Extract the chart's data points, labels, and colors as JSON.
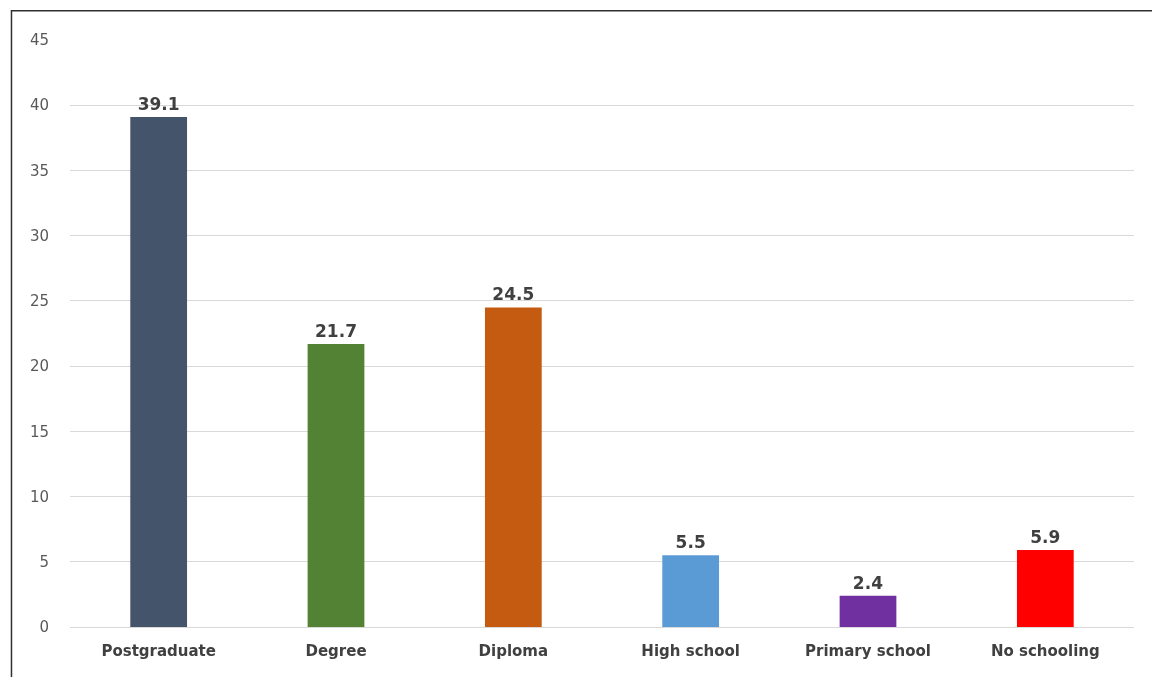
{
  "chart_data": {
    "type": "bar",
    "categories": [
      "Postgraduate",
      "Degree",
      "Diploma",
      "High school",
      "Primary school",
      "No schooling"
    ],
    "values": [
      39.1,
      21.7,
      24.5,
      5.5,
      2.4,
      5.9
    ],
    "colors": [
      "#44546a",
      "#548235",
      "#c55a11",
      "#5b9bd5",
      "#7030a0",
      "#ff0000"
    ],
    "ylim": [
      0,
      45
    ],
    "yticks": [
      0,
      5,
      10,
      15,
      20,
      25,
      30,
      35,
      40,
      45
    ],
    "grid": "y",
    "data_labels": true
  }
}
